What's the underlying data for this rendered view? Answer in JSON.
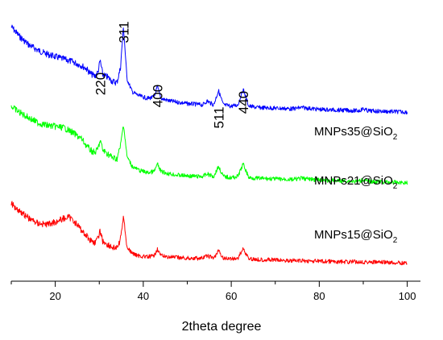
{
  "chart_data": {
    "type": "line",
    "title": "",
    "xlabel": "2theta degree",
    "ylabel": "",
    "xlim": [
      10,
      100
    ],
    "x_ticks": [
      "20",
      "40",
      "60",
      "80",
      "100"
    ],
    "grid": false,
    "peak_labels": [
      {
        "text": "220",
        "x": 30.2
      },
      {
        "text": "311",
        "x": 35.5
      },
      {
        "text": "400",
        "x": 43.2
      },
      {
        "text": "511",
        "x": 57.1
      },
      {
        "text": "440",
        "x": 62.7
      }
    ],
    "series": [
      {
        "name": "MNPs35@SiO2",
        "label_main": "MNPs35@SiO",
        "label_sub": "2",
        "color": "#0000ff",
        "x": [
          10,
          12,
          14,
          16,
          18,
          20,
          22,
          24,
          26,
          27,
          28,
          29,
          29.7,
          30.2,
          30.8,
          32,
          33,
          34,
          34.8,
          35.5,
          36.3,
          37.5,
          39,
          41,
          42.5,
          43.2,
          44,
          46,
          48,
          50,
          52,
          53.5,
          54.5,
          56,
          57.1,
          58.2,
          60,
          61.5,
          62.7,
          64,
          66,
          70,
          74,
          76,
          80,
          85,
          89,
          90,
          91,
          95,
          100
        ],
        "values": [
          100,
          92,
          86,
          82,
          79,
          77,
          75,
          73,
          70,
          68,
          64,
          62,
          65,
          74,
          63,
          61,
          58,
          57,
          68,
          100,
          60,
          50,
          47,
          45,
          46,
          54,
          45,
          43,
          42,
          41,
          40.5,
          40,
          43,
          40,
          51,
          40,
          39,
          40,
          52,
          39,
          38,
          37.5,
          37,
          38,
          36.5,
          36,
          35.5,
          37,
          35.5,
          35,
          34.5
        ]
      },
      {
        "name": "MNPs21@SiO2",
        "label_main": "MNPs21@SiO",
        "label_sub": "2",
        "color": "#00ff00",
        "x": [
          10,
          12,
          14,
          16,
          18,
          20,
          22,
          24,
          26,
          27,
          28,
          29,
          29.7,
          30.2,
          30.8,
          32,
          33,
          34,
          34.8,
          35.5,
          36.3,
          37.5,
          39,
          41,
          42.5,
          43.2,
          44,
          46,
          48,
          50,
          52,
          53.5,
          54.5,
          56,
          57.1,
          58.2,
          60,
          61.5,
          62.7,
          64,
          66,
          70,
          74,
          76,
          80,
          85,
          89,
          90,
          91,
          95,
          100
        ],
        "values": [
          76,
          71,
          67,
          63,
          61,
          60,
          59,
          55,
          50,
          45,
          41,
          39,
          42,
          49,
          41,
          38,
          35,
          34,
          44,
          62,
          36,
          28,
          25,
          23,
          24,
          30,
          24,
          22,
          21,
          20.5,
          20,
          20,
          22,
          20,
          28,
          20,
          19,
          20,
          30,
          19,
          18.5,
          18,
          17.5,
          18.5,
          17,
          16.5,
          16,
          17.5,
          16,
          15.5,
          15
        ]
      },
      {
        "name": "MNPs15@SiO2",
        "label_main": "MNPs15@SiO",
        "label_sub": "2",
        "color": "#ff0000",
        "x": [
          10,
          12,
          14,
          16,
          18,
          20,
          22,
          23,
          24,
          26,
          27,
          28,
          29,
          29.7,
          30.2,
          30.8,
          32,
          33,
          34,
          34.8,
          35.5,
          36.3,
          37.5,
          39,
          41,
          42.5,
          43.2,
          44,
          46,
          48,
          50,
          52,
          53.5,
          54.5,
          56,
          57.1,
          58.2,
          60,
          61.5,
          62.7,
          64,
          66,
          70,
          74,
          80,
          85,
          90,
          95,
          100
        ],
        "values": [
          46,
          40,
          34,
          30,
          29,
          31,
          34,
          35,
          33,
          24,
          20,
          16,
          14,
          17,
          24,
          15,
          12,
          10,
          9,
          16,
          36,
          10,
          5,
          3,
          2,
          3,
          9,
          3,
          2,
          1.5,
          1,
          1,
          1,
          3,
          1,
          7,
          1,
          0.5,
          1,
          9,
          0.5,
          0,
          -0.5,
          -1,
          -1.5,
          -2,
          -2,
          -2.5,
          -3
        ]
      }
    ]
  }
}
